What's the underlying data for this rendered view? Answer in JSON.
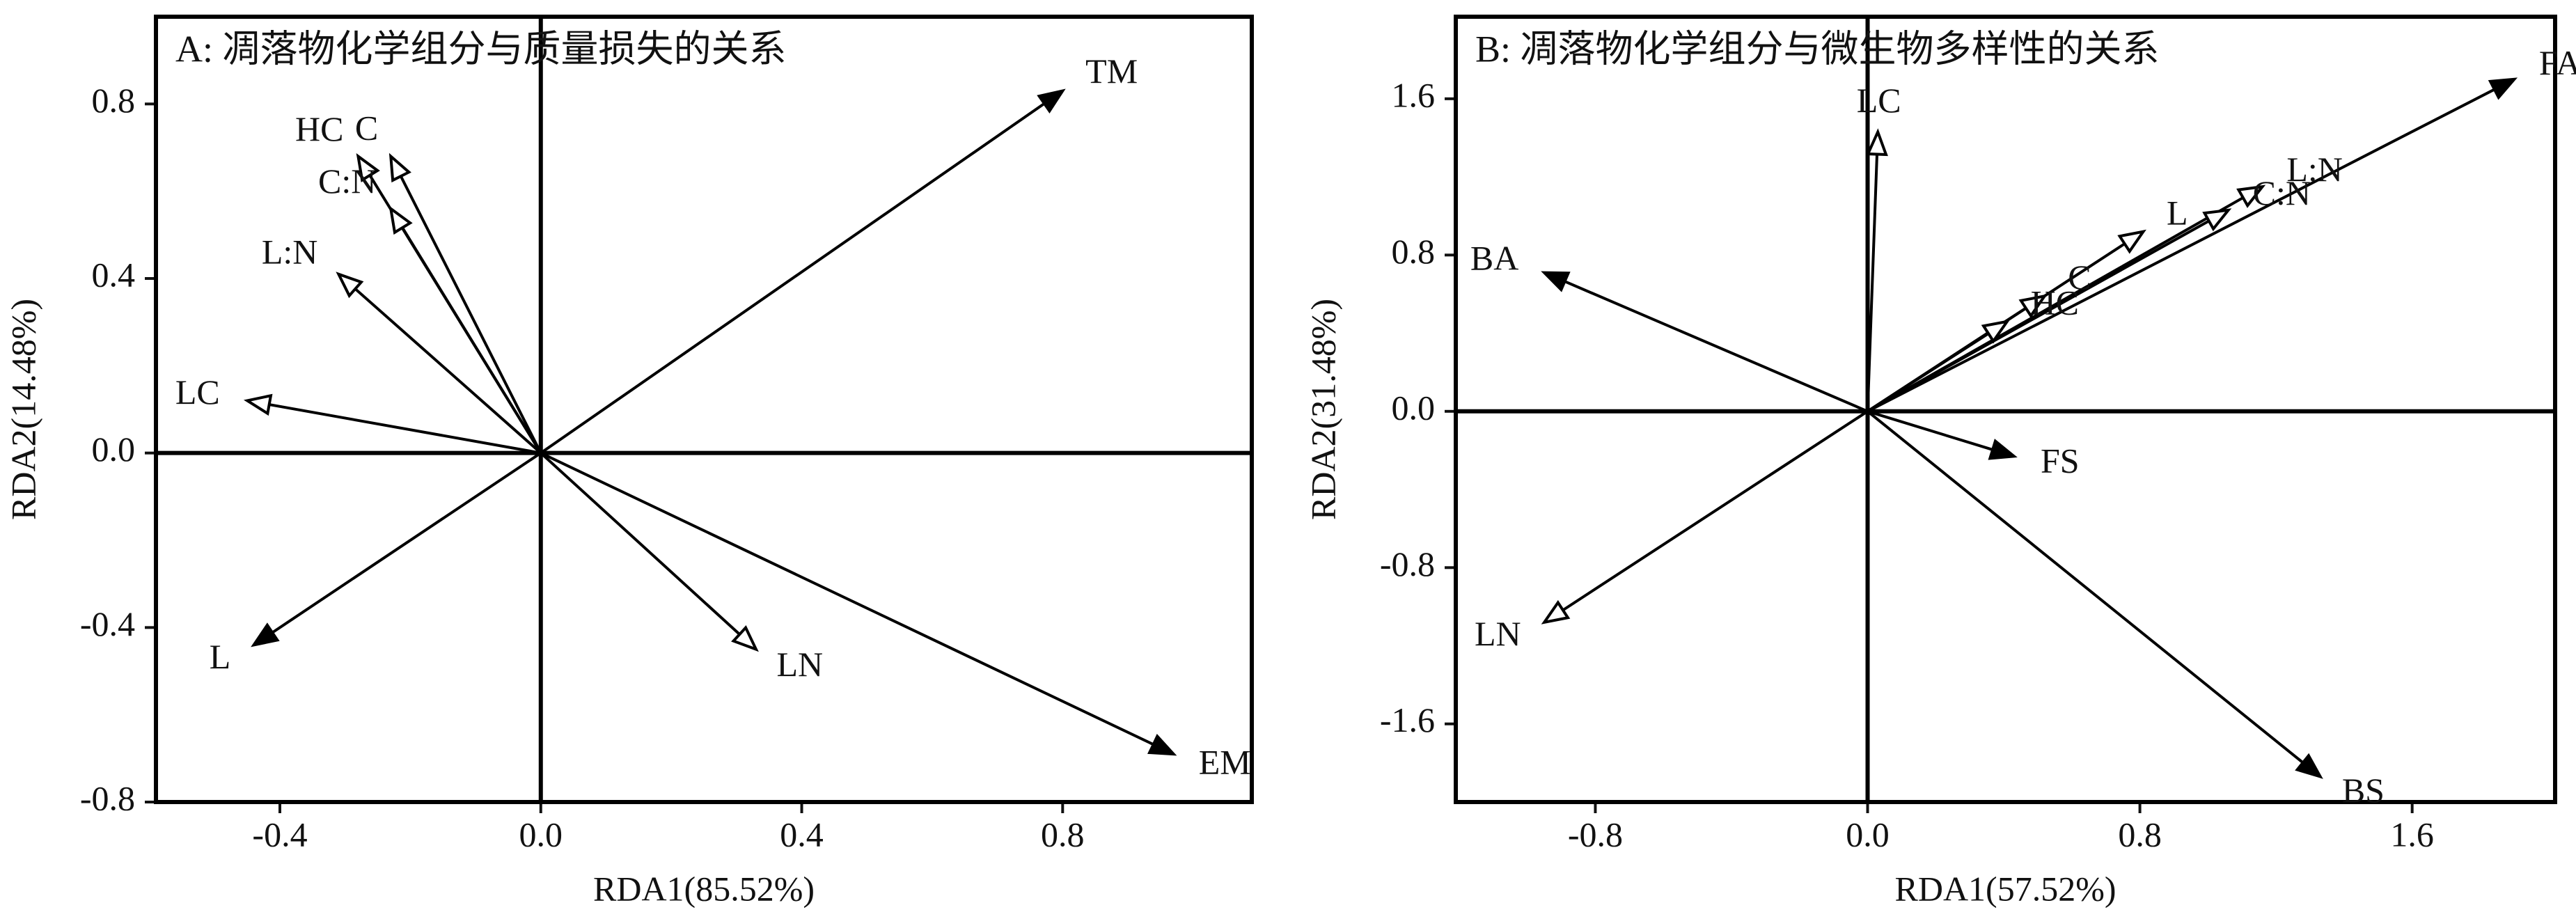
{
  "chart_data": [
    {
      "type": "rda-biplot",
      "title": "A: 凋落物化学组分与质量损失的关系",
      "xlabel": "RDA1(85.52%)",
      "ylabel": "RDA2(14.48%)",
      "xlim": [
        -0.59,
        1.09
      ],
      "ylim": [
        -0.8,
        1.0
      ],
      "xticks": [
        -0.4,
        {
          "value": 0,
          "label": "0.0"
        },
        0.4,
        0.8
      ],
      "yticks": [
        -0.8,
        -0.4,
        {
          "value": 0,
          "label": "0.0"
        },
        0.4,
        0.8
      ],
      "vectors": [
        {
          "name": "TM",
          "x": 0.8,
          "y": 0.83,
          "head": "filled"
        },
        {
          "name": "HC",
          "x": -0.28,
          "y": 0.68,
          "head": "open"
        },
        {
          "name": "C",
          "x": -0.23,
          "y": 0.68,
          "head": "open"
        },
        {
          "name": "C:N",
          "x": -0.23,
          "y": 0.56,
          "head": "open"
        },
        {
          "name": "L:N",
          "x": -0.31,
          "y": 0.41,
          "head": "open"
        },
        {
          "name": "LC",
          "x": -0.45,
          "y": 0.12,
          "head": "open"
        },
        {
          "name": "L",
          "x": -0.44,
          "y": -0.44,
          "head": "filled"
        },
        {
          "name": "LN",
          "x": 0.33,
          "y": -0.45,
          "head": "open"
        },
        {
          "name": "EM",
          "x": 0.97,
          "y": -0.69,
          "head": "filled"
        }
      ]
    },
    {
      "type": "rda-biplot",
      "title": "B: 凋落物化学组分与微生物多样性的关系",
      "xlabel": "RDA1(57.52%)",
      "ylabel": "RDA2(31.48%)",
      "xlim": [
        -1.21,
        2.02
      ],
      "ylim": [
        -2.0,
        2.02
      ],
      "xticks": [
        -0.8,
        {
          "value": 0,
          "label": "0.0"
        },
        0.8,
        1.6
      ],
      "yticks": [
        -1.6,
        -0.8,
        {
          "value": 0,
          "label": "0.0"
        },
        0.8,
        1.6
      ],
      "vectors": [
        {
          "name": "FA",
          "x": 1.9,
          "y": 1.7,
          "head": "filled"
        },
        {
          "name": "LC",
          "x": 0.03,
          "y": 1.43,
          "head": "open"
        },
        {
          "name": "L:N",
          "x": 1.16,
          "y": 1.15,
          "head": "open"
        },
        {
          "name": "C:N",
          "x": 1.06,
          "y": 1.03,
          "head": "open"
        },
        {
          "name": "L",
          "x": 0.81,
          "y": 0.92,
          "head": "open"
        },
        {
          "name": "C",
          "x": 0.52,
          "y": 0.59,
          "head": "open"
        },
        {
          "name": "HC",
          "x": 0.41,
          "y": 0.46,
          "head": "open"
        },
        {
          "name": "BA",
          "x": -0.95,
          "y": 0.71,
          "head": "filled"
        },
        {
          "name": "FS",
          "x": 0.43,
          "y": -0.23,
          "head": "filled"
        },
        {
          "name": "LN",
          "x": -0.95,
          "y": -1.08,
          "head": "open"
        },
        {
          "name": "BS",
          "x": 1.33,
          "y": -1.87,
          "head": "filled"
        }
      ]
    }
  ]
}
